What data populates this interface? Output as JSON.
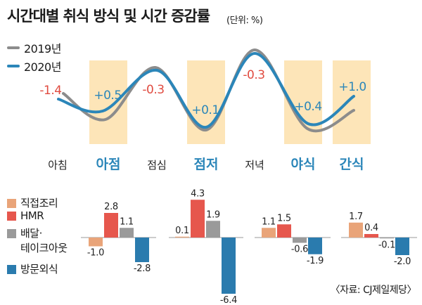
{
  "title": "시간대별 취식 방식 및 시간 증감률",
  "unit": "(단위: %)",
  "source": "〈자료: CJ제일제당〉",
  "colors": {
    "highlight": "#fde5b8",
    "decrease": "#e04b40",
    "increase": "#2b86b9",
    "category_text": "#222222",
    "baseline": "#9a9a9a"
  },
  "chart_data": [
    {
      "type": "line",
      "categories": [
        "아침",
        "아점",
        "점심",
        "점저",
        "저녁",
        "야식",
        "간식"
      ],
      "highlighted_categories": [
        "아점",
        "점저",
        "야식",
        "간식"
      ],
      "series": [
        {
          "name": "2019년",
          "color": "#8c8c8c"
        },
        {
          "name": "2020년",
          "color": "#2b86b9"
        }
      ],
      "change": [
        -1.4,
        0.5,
        -0.3,
        0.1,
        -0.3,
        0.4,
        1.0
      ],
      "change_labels": [
        "-1.4",
        "+0.5",
        "-0.3",
        "+0.1",
        "-0.3",
        "+0.4",
        "+1.0"
      ],
      "legend_position": "top-left",
      "grid": false
    },
    {
      "type": "bar",
      "series": [
        {
          "name": "직접조리",
          "color": "#e9a479",
          "values": [
            -1.0,
            0.1,
            1.1,
            1.7
          ],
          "labels": [
            "-1.0",
            "0.1",
            "1.1",
            "1.7"
          ]
        },
        {
          "name": "HMR",
          "color": "#e6574d",
          "values": [
            2.8,
            4.3,
            1.5,
            0.4
          ],
          "labels": [
            "2.8",
            "4.3",
            "1.5",
            "0.4"
          ]
        },
        {
          "name": "배달·\n테이크아웃",
          "color": "#9a9a9a",
          "values": [
            1.1,
            1.9,
            -0.6,
            -0.1
          ],
          "labels": [
            "1.1",
            "1.9",
            "-0.6",
            "-0.1"
          ]
        },
        {
          "name": "방문외식",
          "color": "#2a7bae",
          "values": [
            -2.8,
            -6.4,
            -1.9,
            -2.0
          ],
          "labels": [
            "-2.8",
            "-6.4",
            "-1.9",
            "-2.0"
          ]
        }
      ],
      "legend_position": "left",
      "grid": false
    }
  ]
}
